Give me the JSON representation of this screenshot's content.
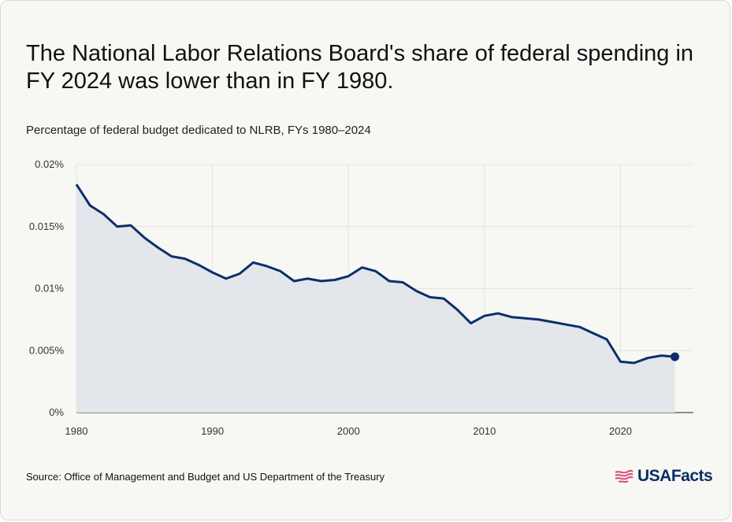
{
  "title": "The National Labor Relations Board's share of federal spending in FY 2024 was lower than in FY 1980.",
  "subtitle": "Percentage of federal budget dedicated to NLRB, FYs 1980–2024",
  "source": "Source: Office of Management and Budget and US Department of the Treasury",
  "brand": "USAFacts",
  "colors": {
    "line": "#0b2f6b",
    "area": "#e3e6ea",
    "grid": "#e4e4e0",
    "background": "#f7f7f4"
  },
  "chart_data": {
    "type": "area",
    "title": "The National Labor Relations Board's share of federal spending in FY 2024 was lower than in FY 1980.",
    "subtitle": "Percentage of federal budget dedicated to NLRB, FYs 1980–2024",
    "xlabel": "",
    "ylabel": "",
    "xlim": [
      1980,
      2024
    ],
    "ylim": [
      0,
      0.02
    ],
    "y_unit": "%",
    "x_ticks": [
      1980,
      1990,
      2000,
      2010,
      2020
    ],
    "y_ticks": [
      0,
      0.005,
      0.01,
      0.015,
      0.02
    ],
    "y_tick_labels": [
      "0%",
      "0.005%",
      "0.01%",
      "0.015%",
      "0.02%"
    ],
    "grid": true,
    "legend": "none",
    "end_marker": true,
    "x": [
      1980,
      1981,
      1982,
      1983,
      1984,
      1985,
      1986,
      1987,
      1988,
      1989,
      1990,
      1991,
      1992,
      1993,
      1994,
      1995,
      1996,
      1997,
      1998,
      1999,
      2000,
      2001,
      2002,
      2003,
      2004,
      2005,
      2006,
      2007,
      2008,
      2009,
      2010,
      2011,
      2012,
      2013,
      2014,
      2015,
      2016,
      2017,
      2018,
      2019,
      2020,
      2021,
      2022,
      2023,
      2024
    ],
    "values": [
      0.0184,
      0.0167,
      0.016,
      0.015,
      0.0151,
      0.0141,
      0.0133,
      0.0126,
      0.0124,
      0.0119,
      0.0113,
      0.0108,
      0.0112,
      0.0121,
      0.0118,
      0.0114,
      0.0106,
      0.0108,
      0.0106,
      0.0107,
      0.011,
      0.0117,
      0.0114,
      0.0106,
      0.0105,
      0.0098,
      0.0093,
      0.0092,
      0.0083,
      0.0072,
      0.0078,
      0.008,
      0.0077,
      0.0076,
      0.0075,
      0.0073,
      0.0071,
      0.0069,
      0.0064,
      0.0059,
      0.0041,
      0.004,
      0.0044,
      0.0046,
      0.0045
    ]
  }
}
